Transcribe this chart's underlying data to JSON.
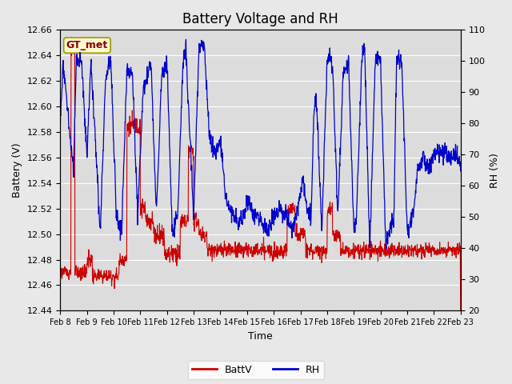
{
  "title": "Battery Voltage and RH",
  "xlabel": "Time",
  "ylabel_left": "Battery (V)",
  "ylabel_right": "RH (%)",
  "ylim_left": [
    12.44,
    12.66
  ],
  "ylim_right": [
    20,
    110
  ],
  "yticks_left": [
    12.44,
    12.46,
    12.48,
    12.5,
    12.52,
    12.54,
    12.56,
    12.58,
    12.6,
    12.62,
    12.64,
    12.66
  ],
  "yticks_right": [
    20,
    30,
    40,
    50,
    60,
    70,
    80,
    90,
    100,
    110
  ],
  "xtick_labels": [
    "Feb 8",
    "Feb 9",
    "Feb 10",
    "Feb 11",
    "Feb 12",
    "Feb 13",
    "Feb 14",
    "Feb 15",
    "Feb 16",
    "Feb 17",
    "Feb 18",
    "Feb 19",
    "Feb 20",
    "Feb 21",
    "Feb 22",
    "Feb 23"
  ],
  "annotation_text": "GT_met",
  "annotation_text_color": "#8B0000",
  "annotation_bg_color": "#FFFACD",
  "annotation_border_color": "#999900",
  "color_battv": "#CC0000",
  "color_rh": "#0000CC",
  "background_color": "#E8E8E8",
  "plot_bg_color": "#DCDCDC",
  "grid_color": "#FFFFFF",
  "legend_battv": "BattV",
  "legend_rh": "RH",
  "title_fontsize": 12,
  "label_fontsize": 9,
  "tick_fontsize": 8
}
